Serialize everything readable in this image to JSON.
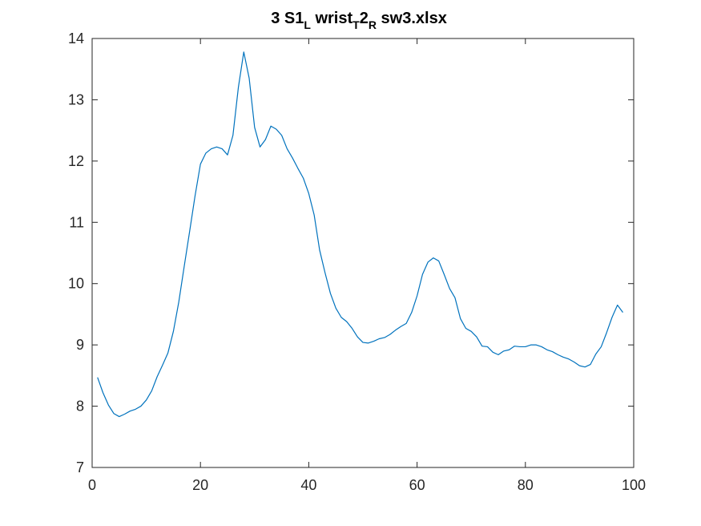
{
  "chart_data": {
    "type": "line",
    "title": {
      "parts": [
        {
          "text": "3 S1",
          "sub": false
        },
        {
          "text": "L",
          "sub": true
        },
        {
          "text": " wrist",
          "sub": false
        },
        {
          "text": "T",
          "sub": true
        },
        {
          "text": "2",
          "sub": false
        },
        {
          "text": "R",
          "sub": true
        },
        {
          "text": " sw3.xlsx",
          "sub": false
        }
      ]
    },
    "xlabel": "",
    "ylabel": "",
    "xlim": [
      0,
      100
    ],
    "ylim": [
      7,
      14
    ],
    "xticks": [
      0,
      20,
      40,
      60,
      80,
      100
    ],
    "yticks": [
      7,
      8,
      9,
      10,
      11,
      12,
      13,
      14
    ],
    "grid": false,
    "line_color": "#0072bd",
    "series": [
      {
        "x": [
          1,
          2,
          3,
          4,
          5,
          6,
          7,
          8,
          9,
          10,
          11,
          12,
          13,
          14,
          15,
          16,
          17,
          18,
          19,
          20,
          21,
          22,
          23,
          24,
          25,
          26,
          27,
          28,
          29,
          30,
          31,
          32,
          33,
          34,
          35,
          36,
          37,
          38,
          39,
          40,
          41,
          42,
          43,
          44,
          45,
          46,
          47,
          48,
          49,
          50,
          51,
          52,
          53,
          54,
          55,
          56,
          57,
          58,
          59,
          60,
          61,
          62,
          63,
          64,
          65,
          66,
          67,
          68,
          69,
          70,
          71,
          72,
          73,
          74,
          75,
          76,
          77,
          78,
          79,
          80,
          81,
          82,
          83,
          84,
          85,
          86,
          87,
          88,
          89,
          90,
          91,
          92,
          93,
          94,
          95,
          96,
          97,
          98
        ],
        "values": [
          8.47,
          8.22,
          8.02,
          7.88,
          7.83,
          7.87,
          7.92,
          7.95,
          8.0,
          8.1,
          8.25,
          8.48,
          8.67,
          8.87,
          9.22,
          9.7,
          10.28,
          10.85,
          11.43,
          11.95,
          12.13,
          12.2,
          12.23,
          12.2,
          12.1,
          12.42,
          13.2,
          13.78,
          13.35,
          12.55,
          12.23,
          12.35,
          12.57,
          12.52,
          12.42,
          12.2,
          12.05,
          11.88,
          11.72,
          11.47,
          11.12,
          10.55,
          10.18,
          9.84,
          9.6,
          9.45,
          9.38,
          9.27,
          9.13,
          9.04,
          9.03,
          9.06,
          9.1,
          9.12,
          9.17,
          9.24,
          9.3,
          9.35,
          9.53,
          9.8,
          10.15,
          10.35,
          10.42,
          10.37,
          10.15,
          9.92,
          9.77,
          9.43,
          9.27,
          9.22,
          9.13,
          8.98,
          8.97,
          8.88,
          8.84,
          8.9,
          8.92,
          8.98,
          8.97,
          8.97,
          9.0,
          9.0,
          8.97,
          8.92,
          8.89,
          8.84,
          8.8,
          8.77,
          8.72,
          8.66,
          8.64,
          8.68,
          8.85,
          8.97,
          9.2,
          9.45,
          9.65,
          9.53
        ]
      }
    ]
  }
}
